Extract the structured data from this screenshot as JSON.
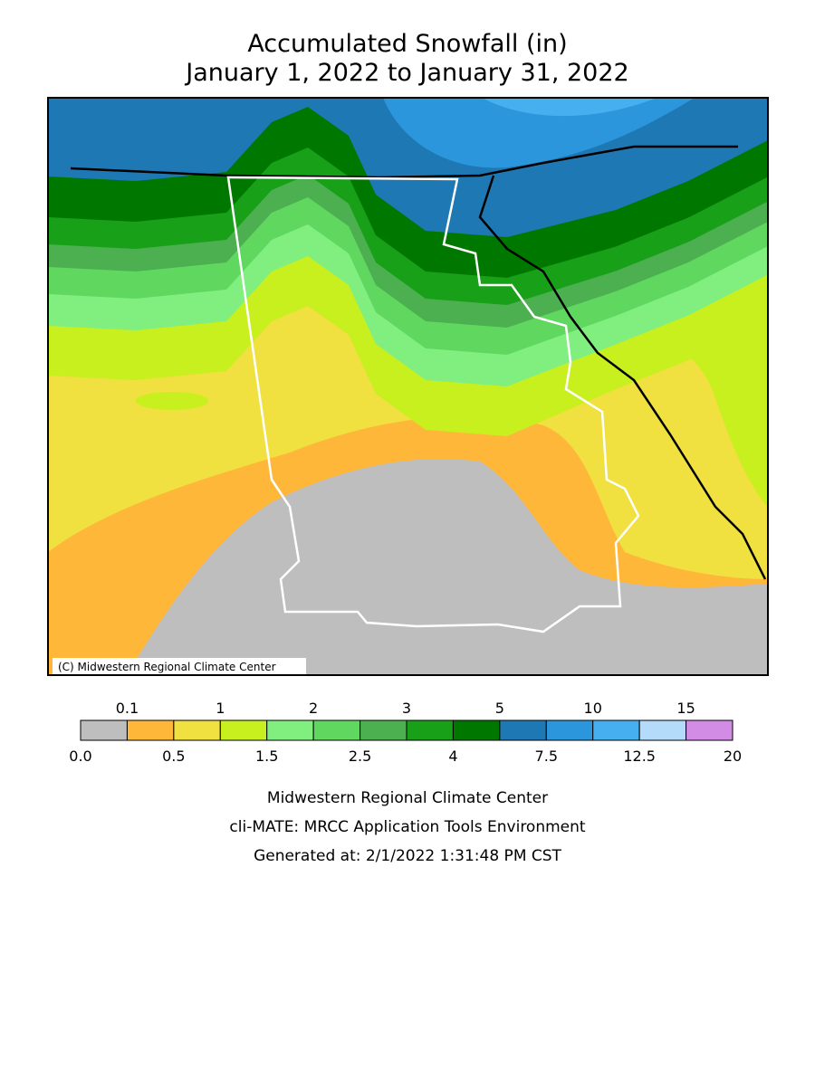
{
  "title": [
    "Accumulated Snowfall (in)",
    "January 1, 2022 to January 31, 2022"
  ],
  "copyright": "(C) Midwestern Regional Climate Center",
  "legend": {
    "breaks": [
      "0.0",
      "0.1",
      "0.5",
      "1",
      "1.5",
      "2",
      "2.5",
      "3",
      "4",
      "5",
      "7.5",
      "10",
      "12.5",
      "15",
      "20"
    ],
    "colors": [
      "#bebebe",
      "#ffb73a",
      "#f0e040",
      "#c8ef1e",
      "#80ef80",
      "#60d860",
      "#4caf50",
      "#18a018",
      "#007800",
      "#1e78b4",
      "#2b96dc",
      "#46aff0",
      "#b4dcfa",
      "#d28ce6"
    ]
  },
  "footer": [
    "Midwestern Regional Climate Center",
    "cli-MATE: MRCC Application Tools Environment",
    "Generated at: 2/1/2022 1:31:48 PM CST"
  ]
}
